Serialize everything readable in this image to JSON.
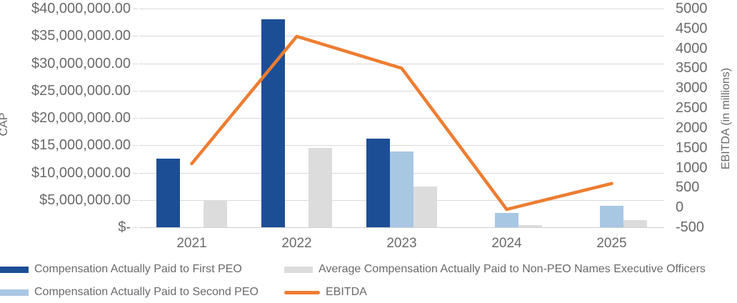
{
  "chart_data": {
    "type": "combo-bar-line",
    "title": "",
    "categories": [
      "2021",
      "2022",
      "2023",
      "2024",
      "2025"
    ],
    "bar_series": [
      {
        "name": "Compensation Actually Paid to First PEO",
        "color": "#1c4e96",
        "values": [
          12500000,
          38000000,
          16200000,
          null,
          null
        ]
      },
      {
        "name": "Compensation Actually Paid to Second PEO",
        "color": "#a8c7e3",
        "values": [
          null,
          null,
          13800000,
          2600000,
          3900000
        ]
      },
      {
        "name": "Average Compensation Actually Paid to Non-PEO Names Executive Officers",
        "color": "#dcdcdc",
        "values": [
          5000000,
          14500000,
          7400000,
          400000,
          1300000
        ]
      }
    ],
    "line_series": {
      "name": "EBITDA",
      "color": "#ed7d31",
      "values": [
        1100,
        4300,
        3500,
        -50,
        600
      ]
    },
    "left_axis": {
      "title": "CAP",
      "min": 0,
      "max": 40000000,
      "tick_values": [
        40000000,
        35000000,
        30000000,
        25000000,
        20000000,
        15000000,
        10000000,
        5000000,
        0
      ],
      "tick_labels": [
        "$40,000,000.00",
        "$35,000,000.00",
        "$30,000,000.00",
        "$25,000,000.00",
        "$20,000,000.00",
        "$15,000,000.00",
        "$10,000,000.00",
        "$5,000,000.00",
        "$-"
      ]
    },
    "right_axis": {
      "title": "EBITDA (in millions)",
      "min": -500,
      "max": 5000,
      "tick_values": [
        5000,
        4500,
        4000,
        3500,
        3000,
        2500,
        2000,
        1500,
        1000,
        500,
        0,
        -500
      ],
      "tick_labels": [
        "5000",
        "4500",
        "4000",
        "3500",
        "3000",
        "2500",
        "2000",
        "1500",
        "1000",
        "500",
        "0",
        "-500"
      ]
    },
    "style": {
      "gridlines": "horizontal",
      "gridline_color": "#d9d9d9",
      "text_color": "#6a6a6a",
      "background": "#ffffff",
      "legend_position": "bottom"
    }
  },
  "legend": {
    "items": [
      {
        "label": "Compensation Actually Paid to First PEO",
        "swatch": "bar",
        "color": "#1c4e96"
      },
      {
        "label": "Average Compensation Actually Paid to Non-PEO Names Executive Officers",
        "swatch": "bar",
        "color": "#dcdcdc"
      },
      {
        "label": "Compensation Actually Paid to Second PEO",
        "swatch": "bar",
        "color": "#a8c7e3"
      },
      {
        "label": "EBITDA",
        "swatch": "line",
        "color": "#ed7d31"
      }
    ]
  }
}
